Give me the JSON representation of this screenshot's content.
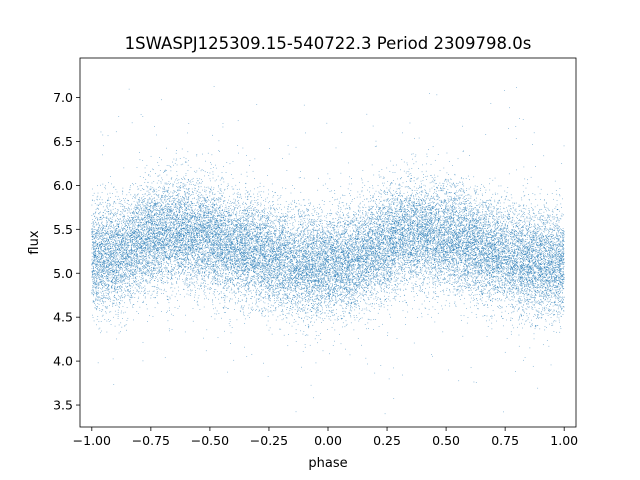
{
  "chart_data": {
    "type": "scatter",
    "title": "1SWASPJ125309.15-540722.3 Period 2309798.0s",
    "xlabel": "phase",
    "ylabel": "flux",
    "xlim": [
      -1.05,
      1.05
    ],
    "ylim": [
      3.25,
      7.45
    ],
    "xticks": [
      -1.0,
      -0.75,
      -0.5,
      -0.25,
      0.0,
      0.25,
      0.5,
      0.75,
      1.0
    ],
    "xtick_labels": [
      "−1.00",
      "−0.75",
      "−0.50",
      "−0.25",
      "0.00",
      "0.25",
      "0.50",
      "0.75",
      "1.00"
    ],
    "yticks": [
      3.5,
      4.0,
      4.5,
      5.0,
      5.5,
      6.0,
      6.5,
      7.0
    ],
    "ytick_labels": [
      "3.5",
      "4.0",
      "4.5",
      "5.0",
      "5.5",
      "6.0",
      "6.5",
      "7.0"
    ],
    "grid": false,
    "marker_color": "#1f77b4",
    "series": [
      {
        "phase_range": [
          -1.0,
          1.0
        ],
        "approx_point_count": 30000,
        "mean_flux_profile": {
          "phase": [
            -1.0,
            -0.9,
            -0.8,
            -0.7,
            -0.6,
            -0.5,
            -0.4,
            -0.3,
            -0.2,
            -0.1,
            0.0,
            0.1,
            0.2,
            0.3,
            0.4,
            0.5,
            0.6,
            0.7,
            0.8,
            0.9,
            1.0
          ],
          "flux": [
            5.15,
            5.2,
            5.35,
            5.45,
            5.45,
            5.4,
            5.3,
            5.25,
            5.15,
            5.1,
            5.1,
            5.15,
            5.3,
            5.4,
            5.45,
            5.4,
            5.35,
            5.25,
            5.15,
            5.1,
            5.1
          ]
        },
        "flux_spread_sd": 0.3,
        "flux_extent": [
          3.4,
          7.2
        ]
      }
    ]
  }
}
